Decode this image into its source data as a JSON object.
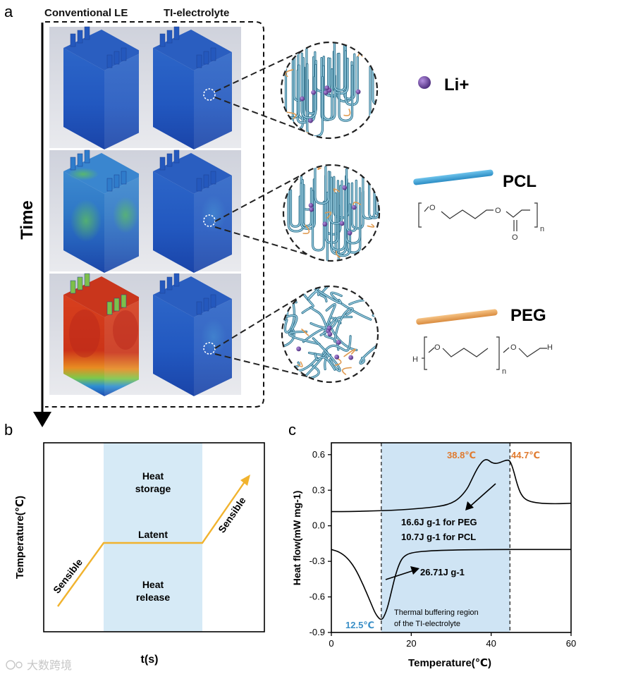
{
  "panel_a": {
    "letter": "a",
    "col_left": "Conventional LE",
    "col_right": "TI-electrolyte",
    "axis_label": "Time",
    "legend": {
      "li": "Li+",
      "pcl": "PCL",
      "peg": "PEG",
      "pcl_subscript": "n",
      "peg_subscript": "n",
      "peg_h_left": "H",
      "peg_h_right": "H",
      "o": "O"
    },
    "colors": {
      "li": "#5b3a8c",
      "pcl": "#3aa3d8",
      "peg": "#e8a25a",
      "cell_cool": "#1f4fb5",
      "cell_hot": "#d4301c"
    }
  },
  "panel_b": {
    "letter": "b",
    "ylabel": "Temperature(℃)",
    "xlabel": "t(s)",
    "labels": {
      "sensible_left": "Sensible",
      "latent": "Latent",
      "sensible_right": "Sensible",
      "heat_storage_1": "Heat",
      "heat_storage_2": "storage",
      "heat_release_1": "Heat",
      "heat_release_2": "release"
    },
    "colors": {
      "line": "#f1b32e",
      "region": "#d6eaf6"
    }
  },
  "panel_c": {
    "letter": "c",
    "xlabel": "Temperature(℃)",
    "ylabel": "Heat flow(mW mg-1)",
    "annotations": {
      "t_low": "12.5℃",
      "t_mid": "38.8℃",
      "t_high": "44.7℃",
      "enthalpy_peg": "16.6J g-1 for PEG",
      "enthalpy_pcl": "10.7J g-1 for  PCL",
      "enthalpy_cool": "26.71J g-1",
      "region_1": "Thermal buffering region",
      "region_2": "of the TI-electrolyte"
    },
    "colors": {
      "t_low": "#3a8fc7",
      "t_mid": "#e07a2e",
      "t_high": "#e07a2e",
      "region": "#cfe4f4"
    }
  },
  "chart_data": {
    "type": "line",
    "xlabel": "Temperature(℃)",
    "ylabel": "Heat flow(mW mg-1)",
    "xlim": [
      0,
      60
    ],
    "ylim": [
      -0.9,
      0.7
    ],
    "xticks": [
      0,
      20,
      40,
      60
    ],
    "yticks": [
      -0.9,
      -0.6,
      -0.3,
      0.0,
      0.3,
      0.6
    ],
    "shaded_region": [
      12.5,
      44.7
    ],
    "series": [
      {
        "x": [
          0,
          5,
          10,
          15,
          20,
          25,
          28,
          30,
          32,
          34,
          35,
          36,
          37,
          38,
          38.8,
          39.5,
          40,
          41,
          42,
          43,
          44,
          44.7,
          45.5,
          46.5,
          47.5,
          49,
          52,
          56,
          60
        ],
        "values": [
          0.12,
          0.12,
          0.125,
          0.13,
          0.14,
          0.155,
          0.17,
          0.19,
          0.23,
          0.31,
          0.38,
          0.45,
          0.51,
          0.55,
          0.56,
          0.55,
          0.535,
          0.525,
          0.53,
          0.545,
          0.555,
          0.55,
          0.48,
          0.35,
          0.26,
          0.21,
          0.19,
          0.185,
          0.19
        ]
      },
      {
        "x": [
          0,
          2,
          4,
          6,
          8,
          10,
          11,
          12,
          12.5,
          13,
          14,
          15,
          16,
          17,
          18,
          20,
          25,
          30,
          40,
          50,
          60
        ],
        "values": [
          -0.2,
          -0.22,
          -0.27,
          -0.36,
          -0.5,
          -0.66,
          -0.74,
          -0.785,
          -0.79,
          -0.78,
          -0.7,
          -0.56,
          -0.42,
          -0.32,
          -0.26,
          -0.225,
          -0.21,
          -0.205,
          -0.2,
          -0.2,
          -0.2
        ]
      }
    ]
  },
  "watermark": "大数跨境"
}
